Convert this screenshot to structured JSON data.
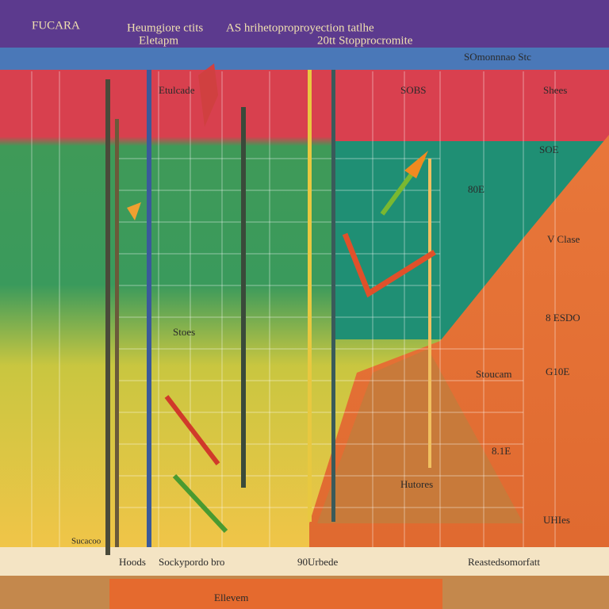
{
  "header": {
    "badge": "FUCARA",
    "title_left": "Heumgiore ctits",
    "subtitle_left": "Eletapm",
    "title_right": "AS hrihetoproproyection tatlhe",
    "subtitle_right": "20tt Stopprocromite",
    "top_right": "SOmonnnao Stc"
  },
  "labels": [
    "Etulcade",
    "SOBS",
    "Shees",
    "SOE",
    "80E",
    "Stoes",
    "V Clase",
    "8 ESDO",
    "Stoucam",
    "G10E",
    "8.1E",
    "Hutores",
    "UHIes"
  ],
  "footer": {
    "left_note": "Sucacoo",
    "items": [
      "Hoods",
      "Sockypordo bro",
      "90Urbede",
      "Reastedsomorfatt"
    ],
    "bottom": "Ellevem"
  }
}
